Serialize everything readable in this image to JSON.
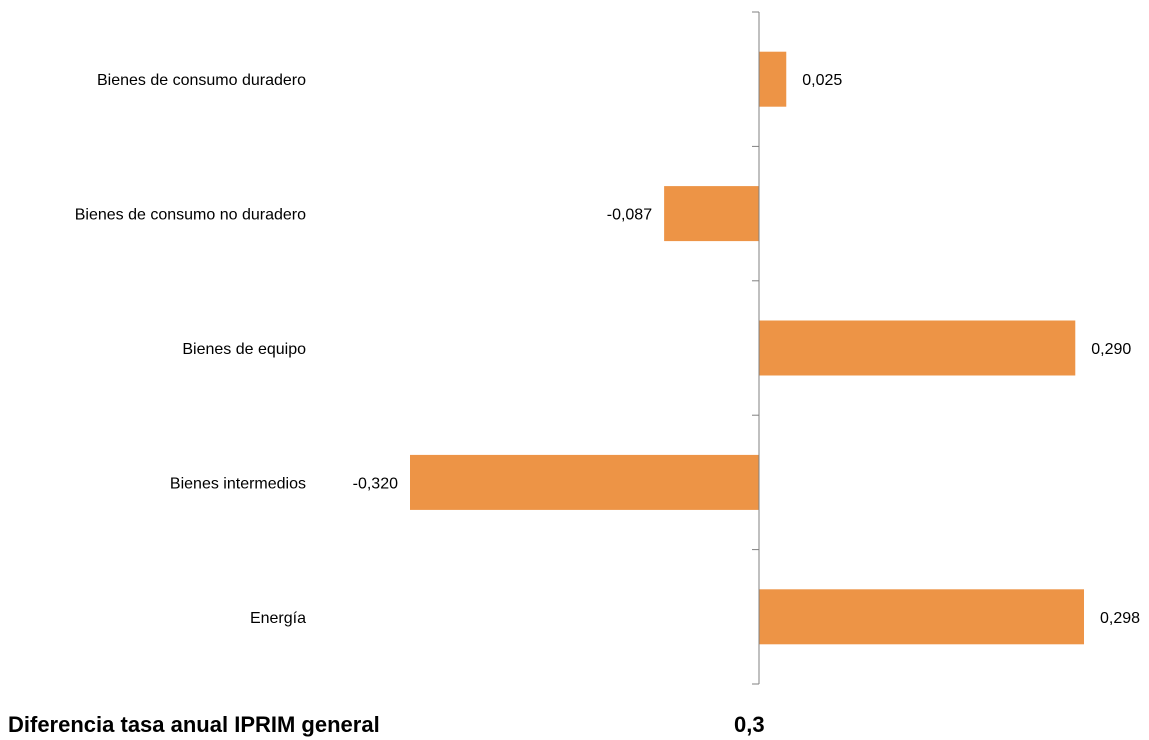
{
  "chart_data": {
    "type": "bar",
    "orientation": "horizontal",
    "categories": [
      "Bienes de consumo duradero",
      "Bienes de consumo no duradero",
      "Bienes de equipo",
      "Bienes intermedios",
      "Energía"
    ],
    "values": [
      0.025,
      -0.087,
      0.29,
      -0.32,
      0.298
    ],
    "data_labels": [
      "0,025",
      "-0,087",
      "0,290",
      "-0,320",
      "0,298"
    ],
    "xlim": [
      -0.32,
      0.3
    ],
    "grid": false,
    "bar_color": "#ED9446",
    "axis_color": "#808080"
  },
  "footer": {
    "label": "Diferencia tasa anual IPRIM general",
    "value": "0,3"
  }
}
